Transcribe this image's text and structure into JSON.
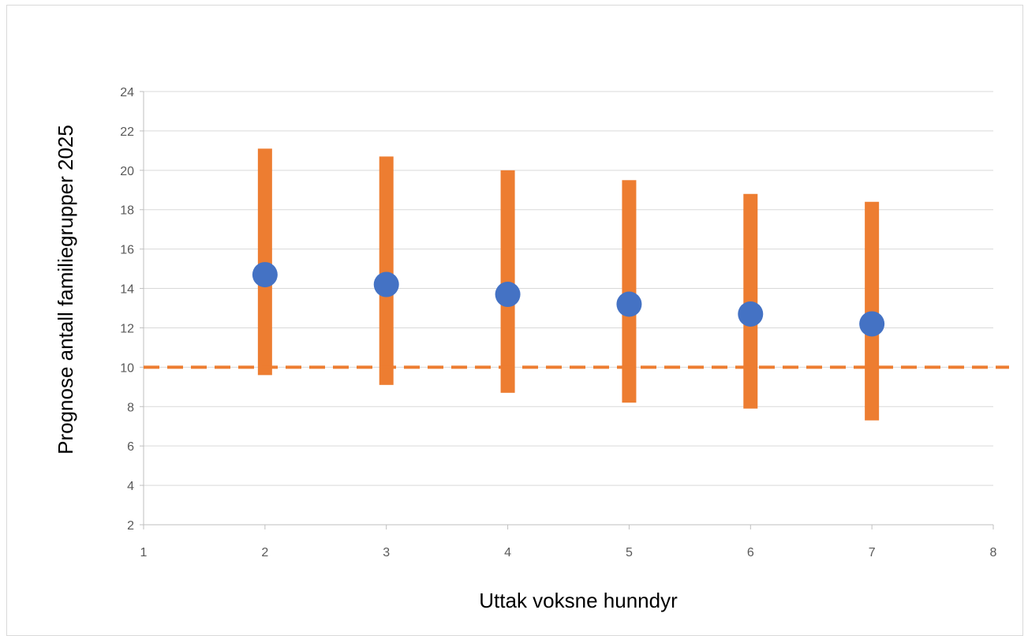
{
  "chart_data": {
    "type": "scatter",
    "title": "",
    "xlabel": "Uttak voksne hunndyr",
    "ylabel": "Prognose antall familiegrupper 2025",
    "xlim": [
      1,
      8
    ],
    "ylim": [
      2,
      24
    ],
    "x_ticks": [
      "1",
      "2",
      "3",
      "4",
      "5",
      "6",
      "7",
      "8"
    ],
    "y_ticks": [
      "2",
      "4",
      "6",
      "8",
      "10",
      "12",
      "14",
      "16",
      "18",
      "20",
      "22",
      "24"
    ],
    "grid": "horizontal",
    "legend": "none",
    "reference_line": {
      "y": 10,
      "style": "dashed",
      "color": "#ED7D31"
    },
    "points": [
      {
        "x": 2,
        "y": 14.7,
        "low": 9.6,
        "high": 21.1
      },
      {
        "x": 3,
        "y": 14.2,
        "low": 9.1,
        "high": 20.7
      },
      {
        "x": 4,
        "y": 13.7,
        "low": 8.7,
        "high": 20.0
      },
      {
        "x": 5,
        "y": 13.2,
        "low": 8.2,
        "high": 19.5
      },
      {
        "x": 6,
        "y": 12.7,
        "low": 7.9,
        "high": 18.8
      },
      {
        "x": 7,
        "y": 12.2,
        "low": 7.3,
        "high": 18.4
      }
    ],
    "colors": {
      "point": "#4472C4",
      "range_bar": "#ED7D31",
      "grid": "#d9d9d9",
      "axis": "#bfbfbf"
    }
  }
}
